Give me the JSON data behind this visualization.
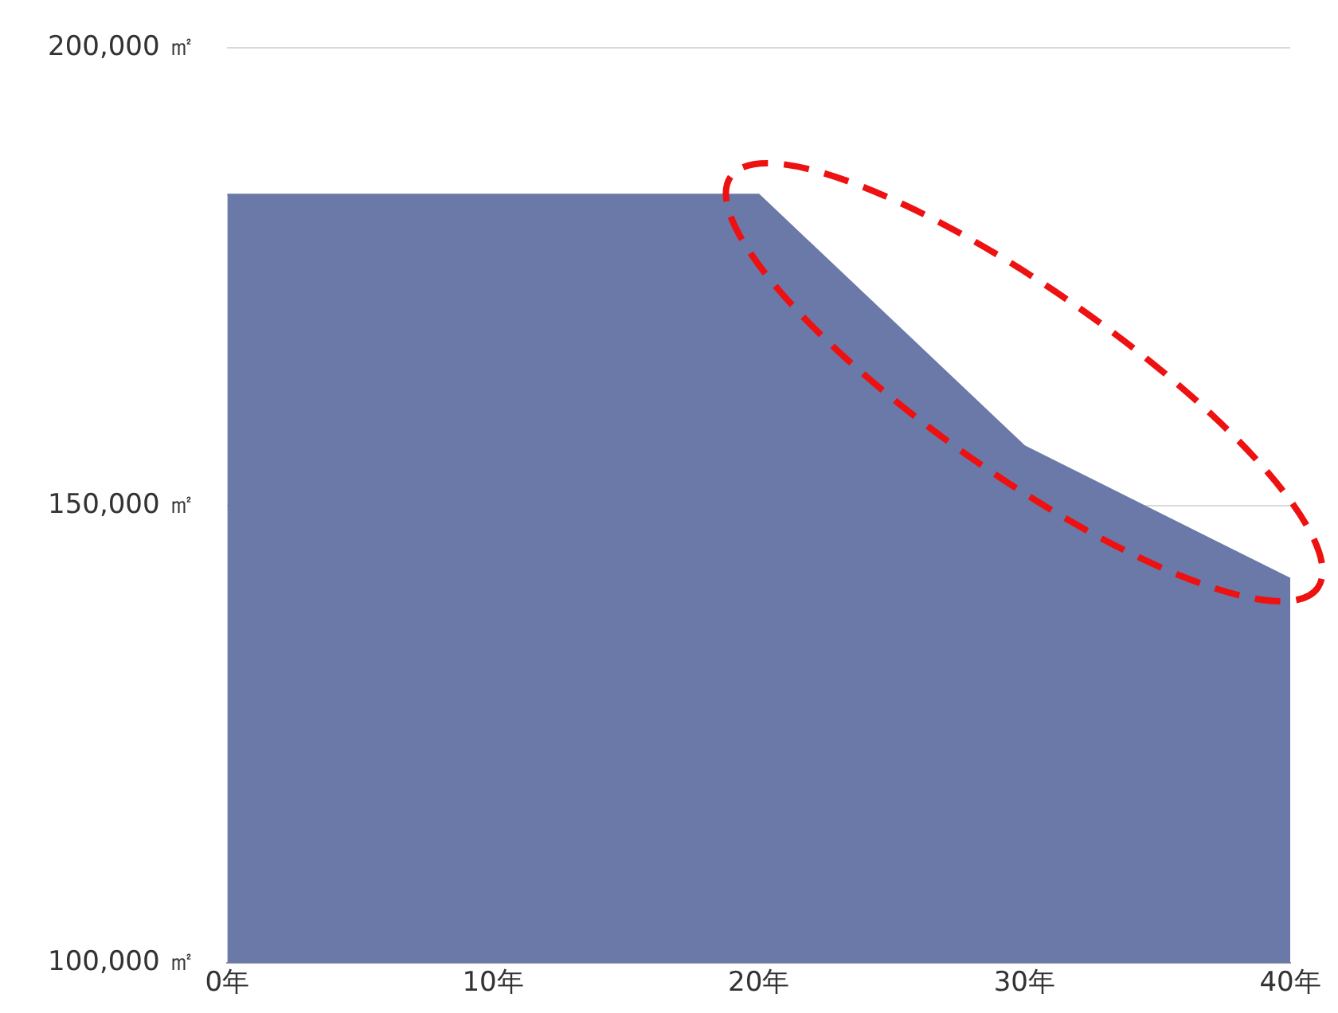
{
  "chart_data": {
    "type": "area",
    "categories": [
      "0年",
      "10年",
      "20年",
      "30年",
      "40年"
    ],
    "values": [
      184000,
      184000,
      184000,
      156500,
      142000
    ],
    "color": "#6a79a8",
    "ylim": [
      100000,
      200000
    ],
    "yticks": [
      {
        "value": 100000,
        "label": "100,000 ㎡"
      },
      {
        "value": 150000,
        "label": "150,000 ㎡"
      },
      {
        "value": 200000,
        "label": "200,000 ㎡"
      }
    ],
    "grid": "y"
  }
}
